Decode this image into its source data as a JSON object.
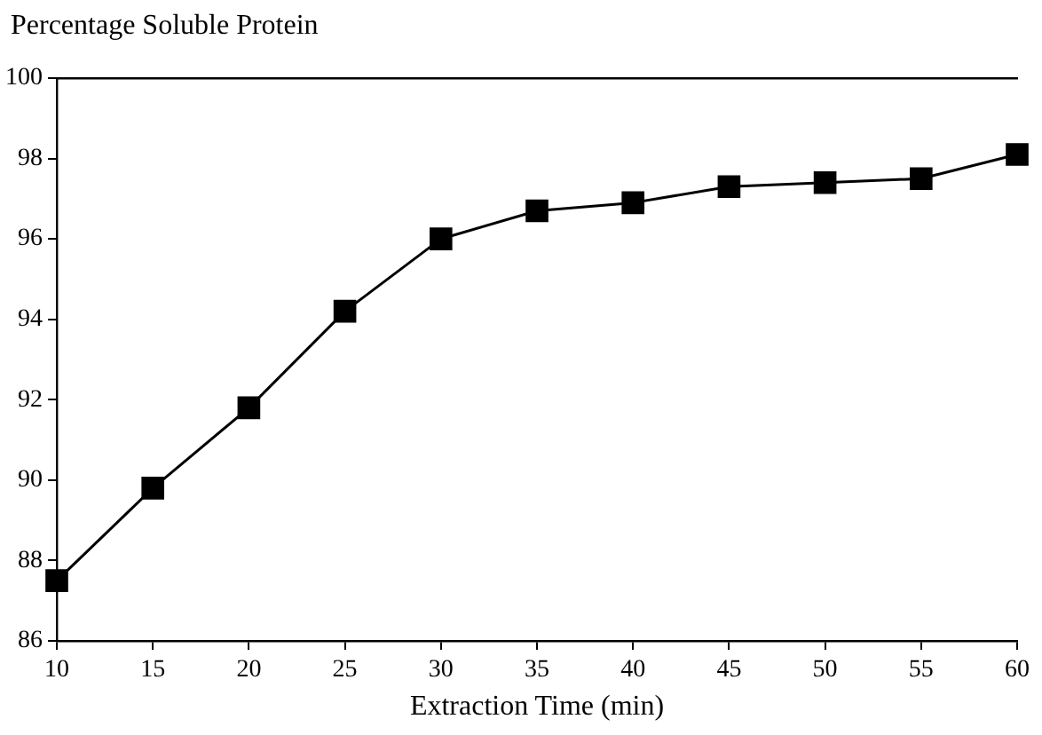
{
  "chart_data": {
    "type": "line",
    "ylabel": "Percentage Soluble Protein",
    "xlabel": "Extraction Time (min)",
    "x": [
      10,
      15,
      20,
      25,
      30,
      35,
      40,
      45,
      50,
      55,
      60
    ],
    "series": [
      {
        "color": "#000000",
        "values": [
          87.5,
          89.8,
          91.8,
          94.2,
          96.0,
          96.7,
          96.9,
          97.3,
          97.4,
          97.5,
          98.1
        ]
      }
    ],
    "xlim": [
      10,
      60
    ],
    "xticks": [
      10,
      15,
      20,
      25,
      30,
      35,
      40,
      45,
      50,
      55,
      60
    ],
    "ylim": [
      86,
      100
    ],
    "yticks": [
      86,
      88,
      90,
      92,
      94,
      96,
      98,
      100
    ],
    "grid": false,
    "legend": false,
    "marker": "square",
    "line_style": "solid"
  }
}
